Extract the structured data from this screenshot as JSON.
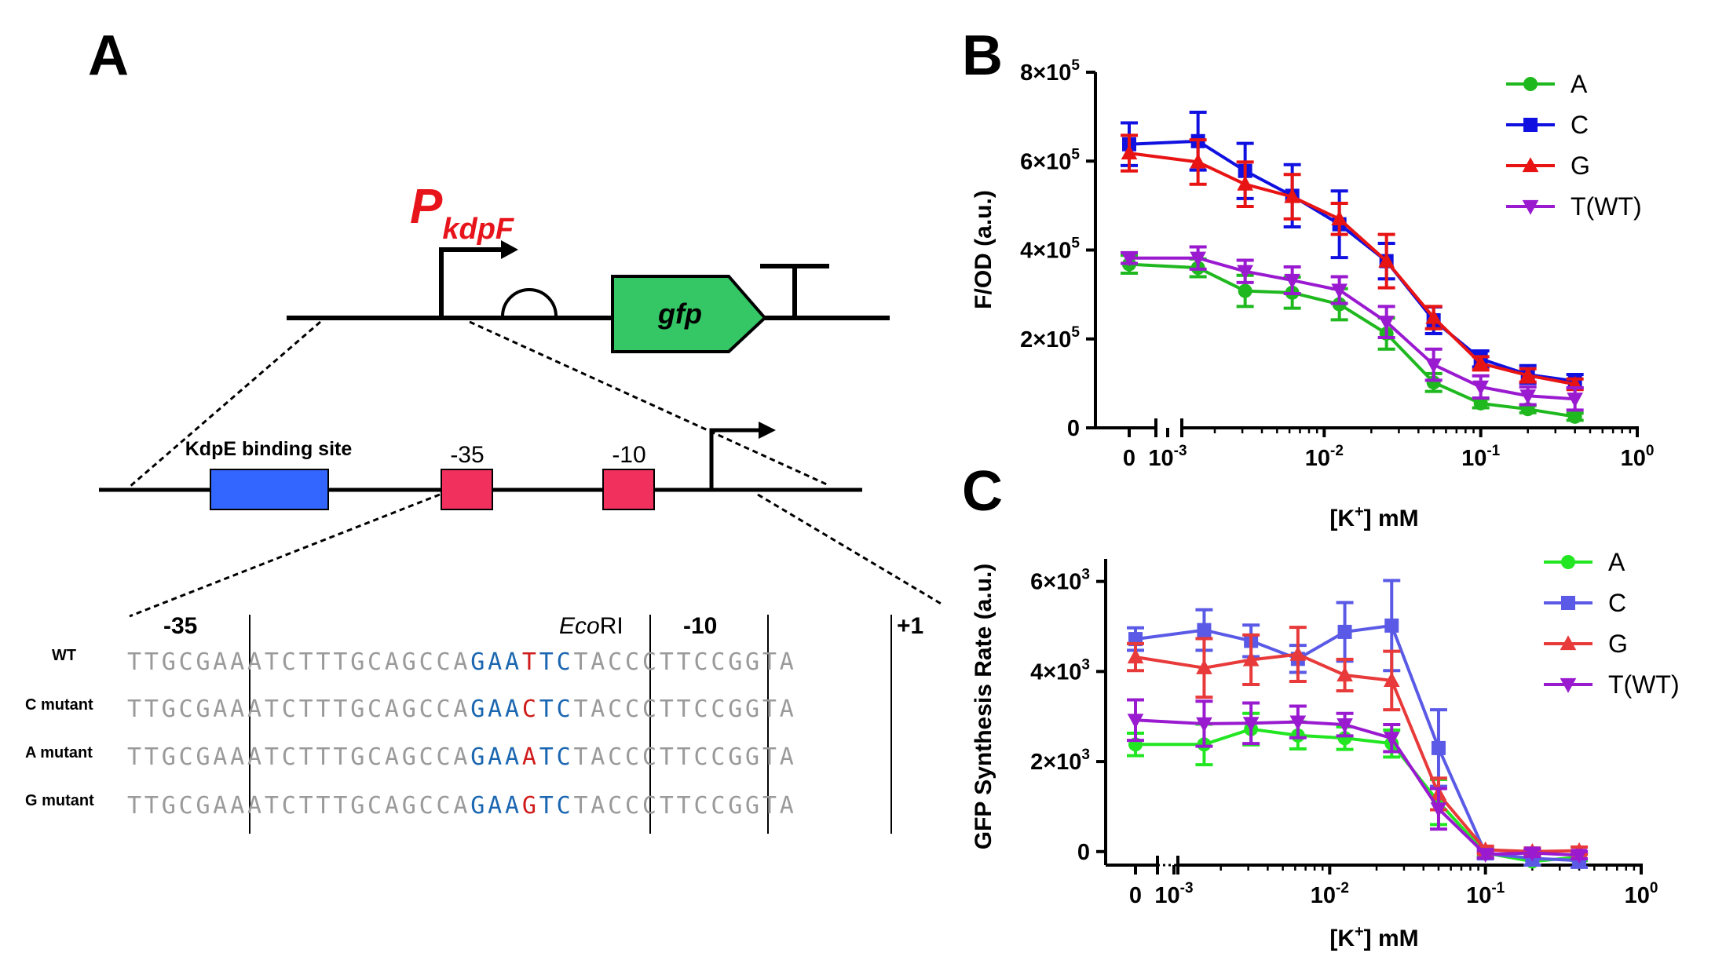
{
  "panel_a": {
    "label": "A",
    "promoter": {
      "p": "P",
      "sub": "kdpF"
    },
    "gene": "gfp",
    "binding_site": "KdpE binding site",
    "box35": "-35",
    "box10": "-10",
    "seq_header": {
      "m35": "-35",
      "eco": "Eco",
      "eco_rest": "RI",
      "m10": "-10",
      "p1": "+1"
    },
    "rows": [
      {
        "label": "WT",
        "pre": "TTGCGAAATCTTTGCAGCCA",
        "b1": "GAA",
        "mut": "T",
        "b2": "TC",
        "post": "TACCCTTCCGGTA"
      },
      {
        "label": "C mutant",
        "pre": "TTGCGAAATCTTTGCAGCCA",
        "b1": "GAA",
        "mut": "C",
        "b2": "TC",
        "post": "TACCCTTCCGGTA"
      },
      {
        "label": "A mutant",
        "pre": "TTGCGAAATCTTTGCAGCCA",
        "b1": "GAA",
        "mut": "A",
        "b2": "TC",
        "post": "TACCCTTCCGGTA"
      },
      {
        "label": "G mutant",
        "pre": "TTGCGAAATCTTTGCAGCCA",
        "b1": "GAA",
        "mut": "G",
        "b2": "TC",
        "post": "TACCCTTCCGGTA"
      }
    ],
    "colors": {
      "promoter": "#e8141b",
      "gfp": "#35c765",
      "binding": "#3366ff",
      "box": "#f2305e",
      "seq": "#9a9a9a",
      "eco": "#1a66b0",
      "mut": "#d01c1c"
    }
  },
  "chart_data": [
    {
      "panel": "B",
      "type": "line",
      "xlabel": "[K+] mM",
      "ylabel": "F/OD (a.u.)",
      "x_scale": "log with separate zero point",
      "x_ticks": [
        "0",
        "10-3",
        "10-2",
        "10-1",
        "100"
      ],
      "y_ticks": [
        "0",
        "2×105",
        "4×105",
        "6×105",
        "8×105"
      ],
      "ylim": [
        0,
        800000
      ],
      "x": [
        0,
        0.0015625,
        0.003125,
        0.00625,
        0.0125,
        0.025,
        0.05,
        0.1,
        0.2,
        0.4
      ],
      "legend_position": "top-right",
      "series": [
        {
          "name": "A",
          "color": "#1fb81f",
          "marker": "circle",
          "values": [
            368000,
            360000,
            308000,
            304000,
            278000,
            212000,
            102000,
            55000,
            42000,
            25000
          ],
          "errors": [
            20000,
            20000,
            35000,
            35000,
            35000,
            35000,
            20000,
            10000,
            8000,
            8000
          ]
        },
        {
          "name": "C",
          "color": "#1010e0",
          "marker": "square",
          "values": [
            638000,
            645000,
            578000,
            522000,
            458000,
            375000,
            242000,
            155000,
            120000,
            105000
          ],
          "errors": [
            48000,
            65000,
            62000,
            70000,
            75000,
            40000,
            30000,
            18000,
            20000,
            15000
          ]
        },
        {
          "name": "G",
          "color": "#e81414",
          "marker": "triangle-up",
          "values": [
            618000,
            598000,
            548000,
            520000,
            470000,
            375000,
            248000,
            145000,
            118000,
            98000
          ],
          "errors": [
            40000,
            50000,
            50000,
            50000,
            35000,
            60000,
            25000,
            15000,
            15000,
            12000
          ]
        },
        {
          "name": "T(WT)",
          "color": "#9a1ad0",
          "marker": "triangle-down",
          "values": [
            382000,
            382000,
            352000,
            332000,
            310000,
            238000,
            142000,
            92000,
            72000,
            65000
          ],
          "errors": [
            12000,
            25000,
            25000,
            30000,
            30000,
            35000,
            35000,
            25000,
            20000,
            25000
          ]
        }
      ]
    },
    {
      "panel": "C",
      "type": "line",
      "xlabel": "[K+] mM",
      "ylabel": "GFP Synthesis Rate  (a.u.)",
      "x_scale": "log with separate zero point",
      "x_ticks": [
        "0",
        "10-3",
        "10-2",
        "10-1",
        "100"
      ],
      "y_ticks": [
        "0",
        "2×103",
        "4×103",
        "6×103"
      ],
      "ylim": [
        -300,
        6500
      ],
      "x": [
        0,
        0.0015625,
        0.003125,
        0.00625,
        0.0125,
        0.025,
        0.05,
        0.1,
        0.2,
        0.4
      ],
      "legend_position": "top-right",
      "series": [
        {
          "name": "A",
          "color": "#22e622",
          "marker": "circle",
          "values": [
            2380,
            2380,
            2720,
            2580,
            2520,
            2400,
            1100,
            -30,
            -220,
            -120
          ],
          "errors": [
            250,
            450,
            350,
            300,
            250,
            300,
            500,
            80,
            80,
            80
          ]
        },
        {
          "name": "C",
          "color": "#5a5ae6",
          "marker": "square",
          "values": [
            4720,
            4920,
            4680,
            4280,
            4880,
            5020,
            2300,
            -40,
            -150,
            -200
          ],
          "errors": [
            250,
            450,
            350,
            300,
            650,
            1000,
            850,
            120,
            150,
            150
          ]
        },
        {
          "name": "G",
          "color": "#e83a3a",
          "marker": "triangle-up",
          "values": [
            4320,
            4080,
            4260,
            4380,
            3920,
            3800,
            1280,
            40,
            0,
            20
          ],
          "errors": [
            300,
            650,
            550,
            600,
            350,
            650,
            350,
            80,
            80,
            80
          ]
        },
        {
          "name": "T(WT)",
          "color": "#9a1ad0",
          "marker": "triangle-down",
          "values": [
            2920,
            2840,
            2850,
            2880,
            2820,
            2520,
            950,
            -60,
            -30,
            -80
          ],
          "errors": [
            450,
            500,
            450,
            350,
            250,
            300,
            450,
            80,
            80,
            80
          ]
        }
      ]
    }
  ]
}
